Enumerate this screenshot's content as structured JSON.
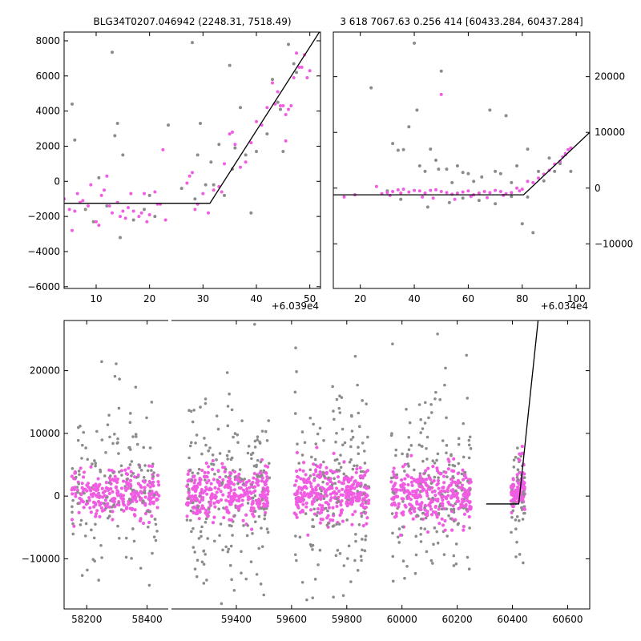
{
  "colors": {
    "primary_points": "#f05ce2",
    "secondary_points": "#8c8c8c",
    "model_line": "#000000",
    "frame": "#000000"
  },
  "chart_data": [
    {
      "id": "left-zoom",
      "type": "scatter",
      "title": "BLG34T0207.046942 (2248.31, 7518.49)",
      "x_offset_label": "+6.039e4",
      "xlim": [
        4,
        52
      ],
      "ylim": [
        -6100,
        8500
      ],
      "xticks": [
        10,
        20,
        30,
        40,
        50
      ],
      "yticks": [
        -6000,
        -4000,
        -2000,
        0,
        2000,
        4000,
        6000,
        8000
      ],
      "ytick_labels": [
        "−6000",
        "−4000",
        "−2000",
        "0",
        "2000",
        "4000",
        "6000",
        "8000"
      ],
      "model": [
        [
          4,
          -1250
        ],
        [
          31.3,
          -1250
        ],
        [
          52,
          8600
        ]
      ],
      "series": [
        {
          "color": "secondary",
          "points": [
            [
              5.5,
              4400
            ],
            [
              6,
              2350
            ],
            [
              8,
              -1600
            ],
            [
              9.5,
              -2300
            ],
            [
              10.5,
              200
            ],
            [
              12,
              -1400
            ],
            [
              13,
              7350
            ],
            [
              13.5,
              2600
            ],
            [
              14,
              3300
            ],
            [
              14.5,
              -3200
            ],
            [
              15,
              1500
            ],
            [
              17,
              -2200
            ],
            [
              19,
              -1600
            ],
            [
              20,
              -800
            ],
            [
              21,
              -2000
            ],
            [
              23.5,
              3200
            ],
            [
              26,
              -400
            ],
            [
              28,
              7900
            ],
            [
              28.5,
              -1000
            ],
            [
              29,
              1500
            ],
            [
              29.5,
              3300
            ],
            [
              30.5,
              -200
            ],
            [
              31.5,
              1100
            ],
            [
              32,
              -200
            ],
            [
              33,
              2100
            ],
            [
              34,
              -800
            ],
            [
              35,
              6600
            ],
            [
              35.5,
              700
            ],
            [
              36,
              1900
            ],
            [
              37,
              4200
            ],
            [
              38,
              1500
            ],
            [
              39,
              -1800
            ],
            [
              40,
              1700
            ],
            [
              42,
              2700
            ],
            [
              43,
              5800
            ],
            [
              44,
              4500
            ],
            [
              44.5,
              4100
            ],
            [
              45,
              1700
            ],
            [
              46,
              7800
            ],
            [
              47,
              6700
            ],
            [
              47.5,
              6200
            ]
          ]
        },
        {
          "color": "primary",
          "points": [
            [
              4,
              -1000
            ],
            [
              5,
              -1600
            ],
            [
              5.5,
              -2800
            ],
            [
              6,
              -1700
            ],
            [
              6.5,
              -700
            ],
            [
              7,
              -1200
            ],
            [
              7.5,
              -1100
            ],
            [
              8.5,
              -1400
            ],
            [
              9,
              -200
            ],
            [
              10,
              -2300
            ],
            [
              10.5,
              -2500
            ],
            [
              11,
              -800
            ],
            [
              11.5,
              -500
            ],
            [
              12,
              300
            ],
            [
              12.5,
              -1400
            ],
            [
              13,
              -1800
            ],
            [
              14,
              -1200
            ],
            [
              14.5,
              -2000
            ],
            [
              15,
              -1700
            ],
            [
              15.5,
              -2100
            ],
            [
              16,
              -1500
            ],
            [
              16.5,
              -700
            ],
            [
              17,
              -1700
            ],
            [
              18,
              -2000
            ],
            [
              18.5,
              -1800
            ],
            [
              19,
              -700
            ],
            [
              19.5,
              -2300
            ],
            [
              20,
              -1900
            ],
            [
              21,
              -600
            ],
            [
              21.5,
              -1300
            ],
            [
              22,
              -1300
            ],
            [
              22.5,
              1800
            ],
            [
              23,
              -2200
            ],
            [
              27,
              -100
            ],
            [
              27.5,
              300
            ],
            [
              28,
              500
            ],
            [
              28.5,
              -1600
            ],
            [
              29,
              -1300
            ],
            [
              30,
              -700
            ],
            [
              31,
              -1800
            ],
            [
              32,
              -500
            ],
            [
              33,
              -300
            ],
            [
              33.5,
              -600
            ],
            [
              34,
              1000
            ],
            [
              35,
              2700
            ],
            [
              35.5,
              2800
            ],
            [
              36,
              2100
            ],
            [
              37,
              800
            ],
            [
              38,
              1100
            ],
            [
              39,
              2200
            ],
            [
              40,
              3400
            ],
            [
              41,
              3200
            ],
            [
              42,
              4200
            ],
            [
              43,
              5600
            ],
            [
              43.5,
              4400
            ],
            [
              44,
              5100
            ],
            [
              44.5,
              4300
            ],
            [
              45,
              4300
            ],
            [
              45.5,
              3800
            ],
            [
              46,
              4100
            ],
            [
              46.5,
              4300
            ],
            [
              47,
              5900
            ],
            [
              47.5,
              7300
            ],
            [
              48,
              6500
            ],
            [
              48.5,
              6500
            ],
            [
              49,
              7200
            ],
            [
              49.5,
              5900
            ],
            [
              50,
              6300
            ],
            [
              45.5,
              2300
            ]
          ]
        }
      ]
    },
    {
      "id": "right-zoom",
      "type": "scatter",
      "title": "3 618 7067.63 0.256 414 [60433.284, 60437.284]",
      "x_offset_label": "+6.034e4",
      "xlim": [
        10,
        105
      ],
      "ylim": [
        -18000,
        28000
      ],
      "xticks": [
        20,
        40,
        60,
        80,
        100
      ],
      "yticks": [
        -10000,
        0,
        10000,
        20000
      ],
      "ytick_labels": [
        "−10000",
        "0",
        "10000",
        "20000"
      ],
      "model": [
        [
          10,
          -1200
        ],
        [
          80.5,
          -1200
        ],
        [
          105,
          10000
        ]
      ],
      "series": [
        {
          "color": "secondary",
          "points": [
            [
              24,
              18000
            ],
            [
              32,
              8000
            ],
            [
              34,
              6800
            ],
            [
              36,
              6900
            ],
            [
              38,
              11000
            ],
            [
              40,
              26000
            ],
            [
              41,
              14000
            ],
            [
              42,
              4000
            ],
            [
              44,
              3000
            ],
            [
              46,
              7000
            ],
            [
              48,
              5000
            ],
            [
              49,
              3400
            ],
            [
              50,
              21000
            ],
            [
              52,
              3400
            ],
            [
              54,
              1000
            ],
            [
              56,
              4000
            ],
            [
              58,
              2800
            ],
            [
              60,
              2600
            ],
            [
              62,
              1200
            ],
            [
              65,
              2000
            ],
            [
              68,
              14000
            ],
            [
              70,
              3000
            ],
            [
              72,
              2600
            ],
            [
              74,
              13000
            ],
            [
              76,
              1000
            ],
            [
              78,
              4000
            ],
            [
              80,
              -6400
            ],
            [
              82,
              7000
            ],
            [
              84,
              -8000
            ],
            [
              86,
              3000
            ],
            [
              88,
              1300
            ],
            [
              90,
              5400
            ],
            [
              92,
              3000
            ],
            [
              94,
              4400
            ],
            [
              96,
              6000
            ],
            [
              98,
              3000
            ],
            [
              30,
              -500
            ],
            [
              35,
              -2000
            ],
            [
              45,
              -3400
            ],
            [
              53,
              -2600
            ],
            [
              58,
              -1800
            ],
            [
              64,
              -2200
            ],
            [
              70,
              -2800
            ],
            [
              76,
              -1500
            ],
            [
              82,
              -1600
            ]
          ]
        },
        {
          "color": "primary",
          "points": [
            [
              14,
              -1600
            ],
            [
              18,
              -1200
            ],
            [
              26,
              300
            ],
            [
              28,
              -1000
            ],
            [
              30,
              -800
            ],
            [
              32,
              -600
            ],
            [
              34,
              -300
            ],
            [
              36,
              -200
            ],
            [
              38,
              -700
            ],
            [
              40,
              -400
            ],
            [
              42,
              -500
            ],
            [
              44,
              -900
            ],
            [
              46,
              -400
            ],
            [
              48,
              -300
            ],
            [
              50,
              16800
            ],
            [
              50,
              -600
            ],
            [
              52,
              -800
            ],
            [
              54,
              -1100
            ],
            [
              56,
              -900
            ],
            [
              58,
              -700
            ],
            [
              60,
              -500
            ],
            [
              62,
              -1200
            ],
            [
              64,
              -900
            ],
            [
              66,
              -600
            ],
            [
              68,
              -800
            ],
            [
              70,
              -400
            ],
            [
              72,
              -600
            ],
            [
              74,
              -1000
            ],
            [
              76,
              -800
            ],
            [
              78,
              0
            ],
            [
              80,
              -200
            ],
            [
              82,
              1200
            ],
            [
              84,
              1000
            ],
            [
              86,
              1800
            ],
            [
              88,
              2500
            ],
            [
              90,
              3200
            ],
            [
              92,
              4300
            ],
            [
              94,
              4800
            ],
            [
              95,
              5600
            ],
            [
              96,
              6200
            ],
            [
              97,
              6900
            ],
            [
              98,
              7200
            ],
            [
              31,
              -1300
            ],
            [
              35,
              -900
            ],
            [
              43,
              -1600
            ],
            [
              47,
              -1800
            ],
            [
              55,
              -2000
            ],
            [
              61,
              -1500
            ],
            [
              67,
              -1700
            ],
            [
              73,
              -1300
            ],
            [
              79,
              -500
            ]
          ]
        }
      ]
    },
    {
      "id": "full-lightcurve",
      "type": "scatter",
      "title": "",
      "xlim": [
        58125,
        60680
      ],
      "axis_break_x": 58470,
      "ylim": [
        -18000,
        28000
      ],
      "xticks": [
        58200,
        58400,
        59400,
        59600,
        59800,
        60000,
        60200,
        60400,
        60600
      ],
      "yticks": [
        -10000,
        0,
        10000,
        20000
      ],
      "ytick_labels": [
        "−10000",
        "0",
        "10000",
        "20000"
      ],
      "model": [
        [
          60305,
          -1250
        ],
        [
          60423,
          -1250
        ],
        [
          60493,
          28000
        ]
      ],
      "seasons": [
        {
          "x_start": 58150,
          "x_end": 58440,
          "center": 58300,
          "base_spread": 1800,
          "outlier_spread": 14000,
          "count": 420
        },
        {
          "x_start": 59220,
          "x_end": 59520,
          "center": 59400,
          "base_spread": 2000,
          "outlier_spread": 18000,
          "count": 520
        },
        {
          "x_start": 59610,
          "x_end": 59880,
          "center": 59740,
          "base_spread": 2200,
          "outlier_spread": 18000,
          "count": 480
        },
        {
          "x_start": 59960,
          "x_end": 60250,
          "center": 60100,
          "base_spread": 2200,
          "outlier_spread": 18000,
          "count": 500
        },
        {
          "x_start": 60395,
          "x_end": 60445,
          "center": 60420,
          "base_spread": 1200,
          "outlier_spread": 10000,
          "count": 130
        }
      ]
    }
  ]
}
